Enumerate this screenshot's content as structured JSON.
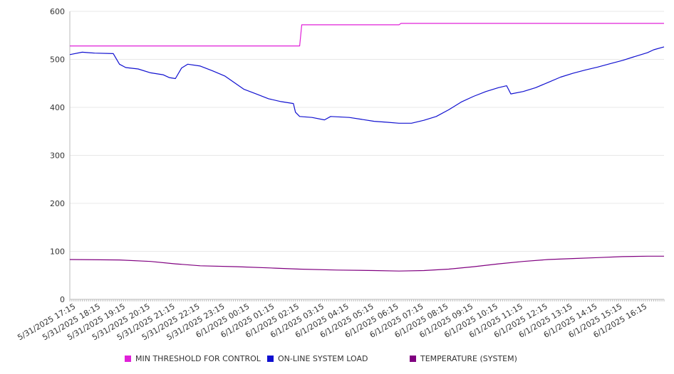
{
  "chart_data": {
    "type": "line",
    "title": "",
    "xlabel": "",
    "ylabel": "",
    "ylim": [
      0,
      600
    ],
    "yticks": [
      0,
      100,
      200,
      300,
      400,
      500,
      600
    ],
    "grid": true,
    "legend_position": "bottom",
    "x_tick_labels": [
      "5/31/2025 17:15",
      "5/31/2025 18:15",
      "5/31/2025 19:15",
      "5/31/2025 20:15",
      "5/31/2025 21:15",
      "5/31/2025 22:15",
      "5/31/2025 23:15",
      "6/1/2025 00:15",
      "6/1/2025 01:15",
      "6/1/2025 02:15",
      "6/1/2025 03:15",
      "6/1/2025 04:15",
      "6/1/2025 05:15",
      "6/1/2025 06:15",
      "6/1/2025 07:15",
      "6/1/2025 08:15",
      "6/1/2025 09:15",
      "6/1/2025 10:15",
      "6/1/2025 11:15",
      "6/1/2025 12:15",
      "6/1/2025 13:15",
      "6/1/2025 14:15",
      "6/1/2025 15:15",
      "6/1/2025 16:15"
    ],
    "x_range": [
      "5/31/2025 17:00",
      "6/1/2025 16:55"
    ],
    "series": [
      {
        "name": "MIN THRESHOLD FOR CONTROL",
        "color": "#e020d8",
        "points": [
          [
            "5/31/2025 17:00",
            528
          ],
          [
            "6/1/2025 02:15",
            528
          ],
          [
            "6/1/2025 02:20",
            572
          ],
          [
            "6/1/2025 06:15",
            572
          ],
          [
            "6/1/2025 06:20",
            575
          ],
          [
            "6/1/2025 16:55",
            575
          ]
        ]
      },
      {
        "name": "ON-LINE SYSTEM LOAD",
        "color": "#1010d0",
        "points": [
          [
            "5/31/2025 17:00",
            510
          ],
          [
            "5/31/2025 17:30",
            515
          ],
          [
            "5/31/2025 18:00",
            513
          ],
          [
            "5/31/2025 18:45",
            512
          ],
          [
            "5/31/2025 19:00",
            490
          ],
          [
            "5/31/2025 19:15",
            483
          ],
          [
            "5/31/2025 19:45",
            480
          ],
          [
            "5/31/2025 20:15",
            472
          ],
          [
            "5/31/2025 20:45",
            468
          ],
          [
            "5/31/2025 21:00",
            462
          ],
          [
            "5/31/2025 21:15",
            460
          ],
          [
            "5/31/2025 21:30",
            482
          ],
          [
            "5/31/2025 21:45",
            490
          ],
          [
            "5/31/2025 22:15",
            486
          ],
          [
            "5/31/2025 22:45",
            476
          ],
          [
            "5/31/2025 23:15",
            465
          ],
          [
            "6/1/2025 00:00",
            438
          ],
          [
            "6/1/2025 00:30",
            428
          ],
          [
            "6/1/2025 01:00",
            418
          ],
          [
            "6/1/2025 01:30",
            412
          ],
          [
            "6/1/2025 02:00",
            408
          ],
          [
            "6/1/2025 02:05",
            390
          ],
          [
            "6/1/2025 02:15",
            381
          ],
          [
            "6/1/2025 02:45",
            379
          ],
          [
            "6/1/2025 03:15",
            374
          ],
          [
            "6/1/2025 03:30",
            381
          ],
          [
            "6/1/2025 04:15",
            379
          ],
          [
            "6/1/2025 04:45",
            375
          ],
          [
            "6/1/2025 05:15",
            371
          ],
          [
            "6/1/2025 05:45",
            369
          ],
          [
            "6/1/2025 06:15",
            367
          ],
          [
            "6/1/2025 06:45",
            367
          ],
          [
            "6/1/2025 07:15",
            373
          ],
          [
            "6/1/2025 07:45",
            381
          ],
          [
            "6/1/2025 08:15",
            395
          ],
          [
            "6/1/2025 08:45",
            411
          ],
          [
            "6/1/2025 09:15",
            423
          ],
          [
            "6/1/2025 09:45",
            433
          ],
          [
            "6/1/2025 10:15",
            441
          ],
          [
            "6/1/2025 10:35",
            445
          ],
          [
            "6/1/2025 10:45",
            428
          ],
          [
            "6/1/2025 11:15",
            433
          ],
          [
            "6/1/2025 11:45",
            441
          ],
          [
            "6/1/2025 12:15",
            452
          ],
          [
            "6/1/2025 12:45",
            463
          ],
          [
            "6/1/2025 13:15",
            471
          ],
          [
            "6/1/2025 13:45",
            478
          ],
          [
            "6/1/2025 14:15",
            484
          ],
          [
            "6/1/2025 14:45",
            491
          ],
          [
            "6/1/2025 15:15",
            498
          ],
          [
            "6/1/2025 15:45",
            506
          ],
          [
            "6/1/2025 16:15",
            514
          ],
          [
            "6/1/2025 16:30",
            520
          ],
          [
            "6/1/2025 16:55",
            526
          ]
        ]
      },
      {
        "name": "TEMPERATURE (SYSTEM)",
        "color": "#800080",
        "points": [
          [
            "5/31/2025 17:00",
            83
          ],
          [
            "5/31/2025 19:00",
            82
          ],
          [
            "5/31/2025 20:15",
            79
          ],
          [
            "5/31/2025 21:15",
            74
          ],
          [
            "5/31/2025 22:15",
            70
          ],
          [
            "5/31/2025 23:45",
            68
          ],
          [
            "6/1/2025 01:15",
            65
          ],
          [
            "6/1/2025 02:15",
            63
          ],
          [
            "6/1/2025 03:45",
            61
          ],
          [
            "6/1/2025 05:15",
            60
          ],
          [
            "6/1/2025 06:15",
            59
          ],
          [
            "6/1/2025 07:15",
            60
          ],
          [
            "6/1/2025 08:15",
            63
          ],
          [
            "6/1/2025 09:15",
            68
          ],
          [
            "6/1/2025 10:15",
            74
          ],
          [
            "6/1/2025 11:15",
            79
          ],
          [
            "6/1/2025 12:15",
            83
          ],
          [
            "6/1/2025 13:15",
            85
          ],
          [
            "6/1/2025 14:15",
            87
          ],
          [
            "6/1/2025 15:15",
            89
          ],
          [
            "6/1/2025 16:15",
            90
          ],
          [
            "6/1/2025 16:55",
            90
          ]
        ]
      }
    ]
  }
}
